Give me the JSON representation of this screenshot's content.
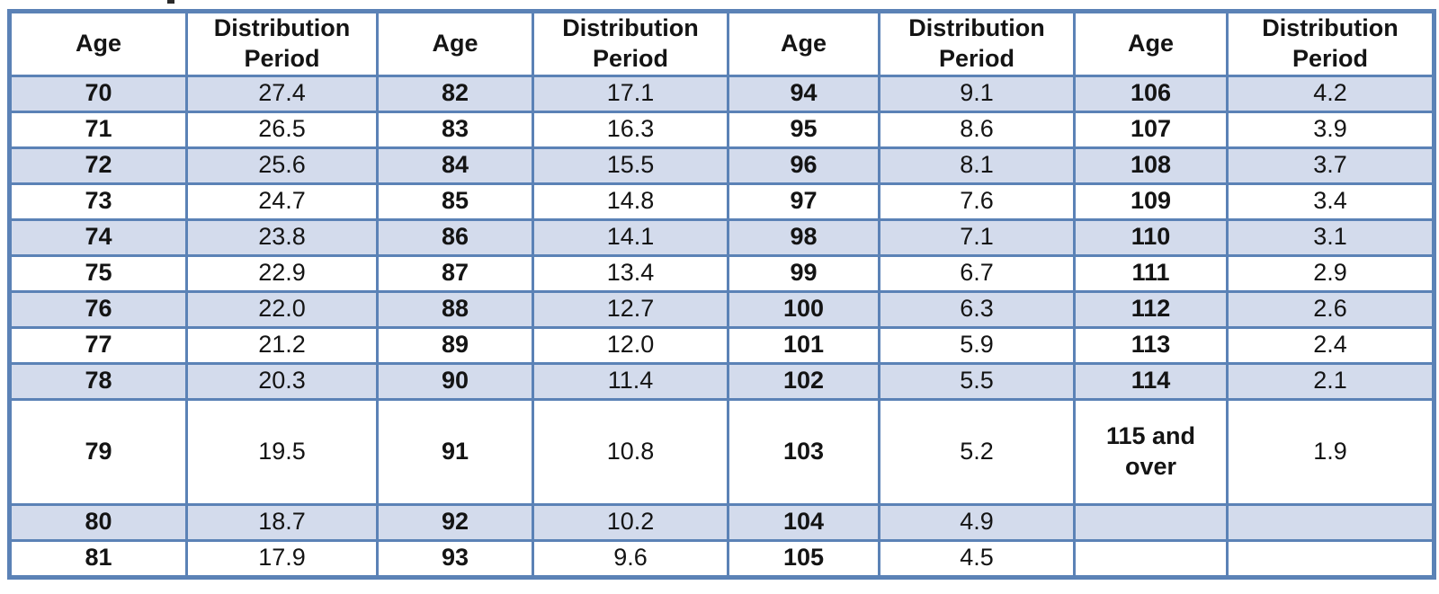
{
  "table": {
    "title_hint": "",
    "border_color": "#5b82b6",
    "shaded_row_color": "#d3dbec",
    "header": {
      "age_label": "Age",
      "period_label": "Distribution Period"
    },
    "rows": [
      {
        "shaded": true,
        "tall": false,
        "cells": [
          "70",
          "27.4",
          "82",
          "17.1",
          "94",
          "9.1",
          "106",
          "4.2"
        ]
      },
      {
        "shaded": false,
        "tall": false,
        "cells": [
          "71",
          "26.5",
          "83",
          "16.3",
          "95",
          "8.6",
          "107",
          "3.9"
        ]
      },
      {
        "shaded": true,
        "tall": false,
        "cells": [
          "72",
          "25.6",
          "84",
          "15.5",
          "96",
          "8.1",
          "108",
          "3.7"
        ]
      },
      {
        "shaded": false,
        "tall": false,
        "cells": [
          "73",
          "24.7",
          "85",
          "14.8",
          "97",
          "7.6",
          "109",
          "3.4"
        ]
      },
      {
        "shaded": true,
        "tall": false,
        "cells": [
          "74",
          "23.8",
          "86",
          "14.1",
          "98",
          "7.1",
          "110",
          "3.1"
        ]
      },
      {
        "shaded": false,
        "tall": false,
        "cells": [
          "75",
          "22.9",
          "87",
          "13.4",
          "99",
          "6.7",
          "111",
          "2.9"
        ]
      },
      {
        "shaded": true,
        "tall": false,
        "cells": [
          "76",
          "22.0",
          "88",
          "12.7",
          "100",
          "6.3",
          "112",
          "2.6"
        ]
      },
      {
        "shaded": false,
        "tall": false,
        "cells": [
          "77",
          "21.2",
          "89",
          "12.0",
          "101",
          "5.9",
          "113",
          "2.4"
        ]
      },
      {
        "shaded": true,
        "tall": false,
        "cells": [
          "78",
          "20.3",
          "90",
          "11.4",
          "102",
          "5.5",
          "114",
          "2.1"
        ]
      },
      {
        "shaded": false,
        "tall": true,
        "cells": [
          "79",
          "19.5",
          "91",
          "10.8",
          "103",
          "5.2",
          "115 and\nover",
          "1.9"
        ]
      },
      {
        "shaded": true,
        "tall": false,
        "cells": [
          "80",
          "18.7",
          "92",
          "10.2",
          "104",
          "4.9",
          "",
          ""
        ]
      },
      {
        "shaded": false,
        "tall": false,
        "cells": [
          "81",
          "17.9",
          "93",
          "9.6",
          "105",
          "4.5",
          "",
          ""
        ]
      }
    ]
  }
}
